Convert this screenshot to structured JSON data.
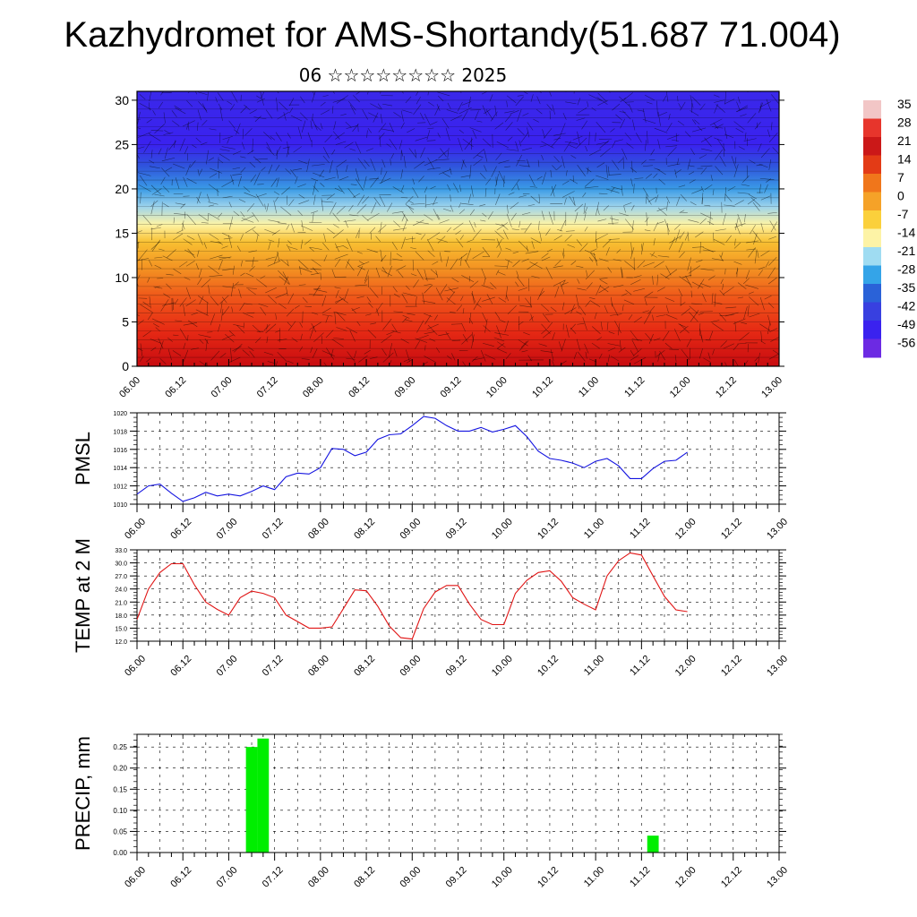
{
  "title": "Kazhydromet for AMS-Shortandy(51.687 71.004)",
  "subtitle": "06 ☆☆☆☆☆☆☆☆ 2025",
  "chart_data": [
    {
      "type": "heatmap",
      "panel": "cross-section",
      "x_tick_labels": [
        "06.00",
        "06.12",
        "07.00",
        "07.12",
        "08.00",
        "08.12",
        "09.00",
        "09.12",
        "10.00",
        "10.12",
        "11.00",
        "11.12",
        "12.00",
        "12.12",
        "13.00"
      ],
      "y_tick_labels": [
        "0",
        "5",
        "10",
        "15",
        "20",
        "25",
        "30"
      ],
      "ylim": [
        0,
        31
      ],
      "colorbar_labels": [
        "35",
        "28",
        "21",
        "14",
        "7",
        "0",
        "-7",
        "-14",
        "-21",
        "-28",
        "-35",
        "-42",
        "-49",
        "-56"
      ],
      "colorbar_colors": [
        "#f2c6c6",
        "#e7352c",
        "#cb1818",
        "#e33b16",
        "#f0761b",
        "#f5a228",
        "#fbd03b",
        "#fdf3a6",
        "#9fdcf2",
        "#34a4e8",
        "#2a62d8",
        "#3840e0",
        "#3a22ef",
        "#6c2ae3"
      ],
      "field_bands": [
        {
          "h": 0,
          "color": "#c80b10"
        },
        {
          "h": 4,
          "color": "#e62a14"
        },
        {
          "h": 8,
          "color": "#f05a1a"
        },
        {
          "h": 11,
          "color": "#f39222"
        },
        {
          "h": 14,
          "color": "#f8c032"
        },
        {
          "h": 16,
          "color": "#fef4a6"
        },
        {
          "h": 18,
          "color": "#9cd3ec"
        },
        {
          "h": 20,
          "color": "#3a9be6"
        },
        {
          "h": 22.5,
          "color": "#2f55dc"
        },
        {
          "h": 25,
          "color": "#3a22ef"
        },
        {
          "h": 31,
          "color": "#3a28ea"
        }
      ],
      "grid": true
    },
    {
      "type": "line",
      "ylabel": "PMSL",
      "x_tick_labels": [
        "06.00",
        "06.12",
        "07.00",
        "07.12",
        "08.00",
        "08.12",
        "09.00",
        "09.12",
        "10.00",
        "10.12",
        "11.00",
        "11.12",
        "12.00",
        "12.12",
        "13.00"
      ],
      "y_tick_labels": [
        "1010",
        "1012",
        "1014",
        "1016",
        "1018",
        "1020"
      ],
      "ylim": [
        1010,
        1020
      ],
      "x_hours": [
        0,
        3,
        6,
        9,
        12,
        15,
        18,
        21,
        24,
        27,
        30,
        33,
        36,
        39,
        42,
        45,
        48,
        51,
        54,
        57,
        60,
        63,
        66,
        69,
        72,
        75,
        78,
        81,
        84,
        87,
        90,
        93,
        96,
        99,
        102,
        105,
        108,
        111,
        114,
        117,
        120,
        123,
        126,
        129,
        132,
        135,
        138,
        141,
        144
      ],
      "values": [
        1011.1,
        1012.0,
        1012.2,
        1011.2,
        1010.3,
        1010.7,
        1011.3,
        1010.9,
        1011.1,
        1010.9,
        1011.4,
        1012.0,
        1011.6,
        1013.0,
        1013.4,
        1013.3,
        1014.0,
        1016.1,
        1016.0,
        1015.3,
        1015.7,
        1017.1,
        1017.6,
        1017.7,
        1018.6,
        1019.6,
        1019.4,
        1018.6,
        1018.0,
        1018.0,
        1018.4,
        1017.9,
        1018.2,
        1018.6,
        1017.4,
        1015.8,
        1015.0,
        1014.8,
        1014.5,
        1014.0,
        1014.7,
        1015.0,
        1014.2,
        1012.8,
        1012.8,
        1013.9,
        1014.7,
        1014.8,
        1015.7
      ]
    },
    {
      "type": "line",
      "ylabel": "TEMP at 2 M",
      "x_tick_labels": [
        "06.00",
        "06.12",
        "07.00",
        "07.12",
        "08.00",
        "08.12",
        "09.00",
        "09.12",
        "10.00",
        "10.12",
        "11.00",
        "11.12",
        "12.00",
        "12.12",
        "13.00"
      ],
      "y_tick_labels": [
        "12.0",
        "15.0",
        "18.0",
        "21.0",
        "24.0",
        "27.0",
        "30.0",
        "33.0"
      ],
      "ylim": [
        12,
        33
      ],
      "x_hours": [
        0,
        3,
        6,
        9,
        12,
        15,
        18,
        21,
        24,
        27,
        30,
        33,
        36,
        39,
        42,
        45,
        48,
        51,
        54,
        57,
        60,
        63,
        66,
        69,
        72,
        75,
        78,
        81,
        84,
        87,
        90,
        93,
        96,
        99,
        102,
        105,
        108,
        111,
        114,
        117,
        120,
        123,
        126,
        129,
        132,
        135,
        138,
        141,
        144
      ],
      "values": [
        17.0,
        24.0,
        27.8,
        29.8,
        29.8,
        25.0,
        21.0,
        19.3,
        18.0,
        22.0,
        23.5,
        23.0,
        22.0,
        18.0,
        16.5,
        15.0,
        15.0,
        15.3,
        19.5,
        23.8,
        23.6,
        20.0,
        15.5,
        12.8,
        12.5,
        19.5,
        23.3,
        24.8,
        24.8,
        20.5,
        17.0,
        15.8,
        15.8,
        23.0,
        26.0,
        27.8,
        28.2,
        25.8,
        22.0,
        20.5,
        19.2,
        27.0,
        30.5,
        32.3,
        31.8,
        27.0,
        22.3,
        19.2,
        18.8
      ]
    },
    {
      "type": "bar",
      "ylabel": "PRECIP, mm",
      "x_tick_labels": [
        "06.00",
        "06.12",
        "07.00",
        "07.12",
        "08.00",
        "08.12",
        "09.00",
        "09.12",
        "10.00",
        "10.12",
        "11.00",
        "11.12",
        "12.00",
        "12.12",
        "13.00"
      ],
      "y_tick_labels": [
        "0.00",
        "0.05",
        "0.10",
        "0.15",
        "0.20",
        "0.25"
      ],
      "ylim": [
        0,
        0.28
      ],
      "x_hours": [
        0,
        3,
        6,
        9,
        12,
        15,
        18,
        21,
        24,
        27,
        30,
        33,
        36,
        39,
        42,
        45,
        48,
        51,
        54,
        57,
        60,
        63,
        66,
        69,
        72,
        75,
        78,
        81,
        84,
        87,
        90,
        93,
        96,
        99,
        102,
        105,
        108,
        111,
        114,
        117,
        120,
        123,
        126,
        129,
        132,
        135,
        138,
        141,
        144
      ],
      "values": [
        0,
        0,
        0,
        0,
        0,
        0,
        0,
        0,
        0,
        0,
        0.25,
        0.27,
        0,
        0,
        0,
        0,
        0,
        0,
        0,
        0,
        0,
        0,
        0,
        0,
        0,
        0,
        0,
        0,
        0,
        0,
        0,
        0,
        0,
        0,
        0,
        0,
        0,
        0,
        0,
        0,
        0,
        0,
        0,
        0,
        0,
        0.04,
        0,
        0,
        0
      ],
      "bar_color": "#00ee00"
    }
  ]
}
